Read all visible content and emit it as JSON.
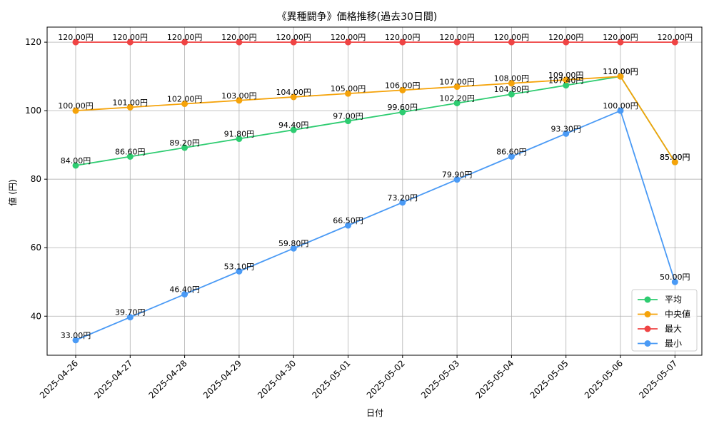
{
  "chart_data": {
    "type": "line",
    "title": "《異種闘争》価格推移(過去30日間)",
    "xlabel": "日付",
    "ylabel": "値 (円)",
    "categories": [
      "2025-04-26",
      "2025-04-27",
      "2025-04-28",
      "2025-04-29",
      "2025-04-30",
      "2025-05-01",
      "2025-05-02",
      "2025-05-03",
      "2025-05-04",
      "2025-05-05",
      "2025-05-06",
      "2025-05-07"
    ],
    "ylim": [
      28.6,
      124.4
    ],
    "yticks": [
      40,
      60,
      80,
      100,
      120
    ],
    "grid": true,
    "legend_position": "bottom-right",
    "value_suffix": "円",
    "series": [
      {
        "name": "平均",
        "color": "#2ecc71",
        "values": [
          84.0,
          86.6,
          89.2,
          91.8,
          94.4,
          97.0,
          99.6,
          102.2,
          104.8,
          107.4,
          110.0,
          85.0
        ]
      },
      {
        "name": "中央値",
        "color": "#f5a30a",
        "values": [
          100.0,
          101.0,
          102.0,
          103.0,
          104.0,
          105.0,
          106.0,
          107.0,
          108.0,
          109.0,
          110.0,
          85.0
        ]
      },
      {
        "name": "最大",
        "color": "#ef4444",
        "values": [
          120.0,
          120.0,
          120.0,
          120.0,
          120.0,
          120.0,
          120.0,
          120.0,
          120.0,
          120.0,
          120.0,
          120.0
        ]
      },
      {
        "name": "最小",
        "color": "#4a9af5",
        "values": [
          33.0,
          39.7,
          46.4,
          53.1,
          59.8,
          66.5,
          73.2,
          79.9,
          86.6,
          93.3,
          100.0,
          50.0
        ]
      }
    ]
  }
}
